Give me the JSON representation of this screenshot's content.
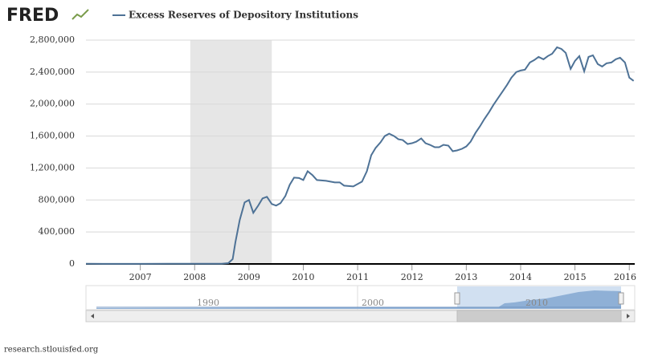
{
  "logo": "FRED",
  "source": "research.stlouisfed.org",
  "navigator": {
    "labels": [
      "1990",
      "2000",
      "2010"
    ]
  },
  "chart_data": {
    "type": "line",
    "series": [
      {
        "name": "Excess Reserves of Depository Institutions",
        "color": "#4e7296",
        "x": [
          2006.0,
          2006.5,
          2007.0,
          2007.5,
          2008.0,
          2008.5,
          2008.62,
          2008.7,
          2008.75,
          2008.83,
          2008.92,
          2009.0,
          2009.08,
          2009.17,
          2009.25,
          2009.33,
          2009.42,
          2009.5,
          2009.58,
          2009.67,
          2009.75,
          2009.83,
          2009.92,
          2010.0,
          2010.08,
          2010.17,
          2010.25,
          2010.42,
          2010.58,
          2010.67,
          2010.75,
          2010.92,
          2011.0,
          2011.08,
          2011.17,
          2011.25,
          2011.33,
          2011.42,
          2011.5,
          2011.58,
          2011.67,
          2011.75,
          2011.83,
          2011.92,
          2012.0,
          2012.08,
          2012.17,
          2012.25,
          2012.33,
          2012.42,
          2012.5,
          2012.58,
          2012.67,
          2012.75,
          2012.83,
          2012.92,
          2013.0,
          2013.08,
          2013.17,
          2013.25,
          2013.33,
          2013.42,
          2013.5,
          2013.58,
          2013.67,
          2013.75,
          2013.83,
          2013.92,
          2014.0,
          2014.08,
          2014.17,
          2014.25,
          2014.33,
          2014.42,
          2014.5,
          2014.58,
          2014.67,
          2014.75,
          2014.83,
          2014.92,
          2015.0,
          2015.08,
          2015.17,
          2015.25,
          2015.33,
          2015.42,
          2015.5,
          2015.58,
          2015.67,
          2015.75,
          2015.83,
          2015.92,
          2016.0,
          2016.08
        ],
        "values": [
          2000,
          1800,
          1700,
          3000,
          2000,
          2000,
          10000,
          60000,
          270000,
          550000,
          770000,
          800000,
          640000,
          730000,
          820000,
          840000,
          750000,
          730000,
          760000,
          850000,
          990000,
          1080000,
          1075000,
          1050000,
          1160000,
          1110000,
          1050000,
          1040000,
          1020000,
          1020000,
          980000,
          970000,
          1000000,
          1030000,
          1160000,
          1360000,
          1450000,
          1520000,
          1600000,
          1630000,
          1600000,
          1560000,
          1550000,
          1500000,
          1510000,
          1530000,
          1570000,
          1510000,
          1490000,
          1460000,
          1460000,
          1490000,
          1480000,
          1410000,
          1420000,
          1440000,
          1470000,
          1530000,
          1640000,
          1720000,
          1810000,
          1900000,
          1990000,
          2070000,
          2160000,
          2240000,
          2330000,
          2400000,
          2420000,
          2430000,
          2520000,
          2550000,
          2590000,
          2560000,
          2600000,
          2630000,
          2710000,
          2690000,
          2640000,
          2440000,
          2540000,
          2600000,
          2410000,
          2590000,
          2610000,
          2500000,
          2470000,
          2510000,
          2520000,
          2560000,
          2580000,
          2520000,
          2330000,
          2290000
        ]
      }
    ],
    "xlim": [
      2006.0,
      2016.1
    ],
    "xticks": [
      2007,
      2008,
      2009,
      2010,
      2011,
      2012,
      2013,
      2014,
      2015,
      2016
    ],
    "ylim": [
      0,
      2800000
    ],
    "yticks": [
      0,
      {
        "value": 400000,
        "label": "400,000"
      },
      {
        "value": 800000,
        "label": "800,000"
      },
      {
        "value": 1200000,
        "label": "1,200,000"
      },
      {
        "value": 1600000,
        "label": "1,600,000"
      },
      {
        "value": 2000000,
        "label": "2,000,000"
      },
      {
        "value": 2400000,
        "label": "2,400,000"
      },
      {
        "value": 2800000,
        "label": "2,800,000"
      }
    ],
    "recessions": [
      [
        2007.92,
        2009.42
      ]
    ],
    "grid": true
  }
}
